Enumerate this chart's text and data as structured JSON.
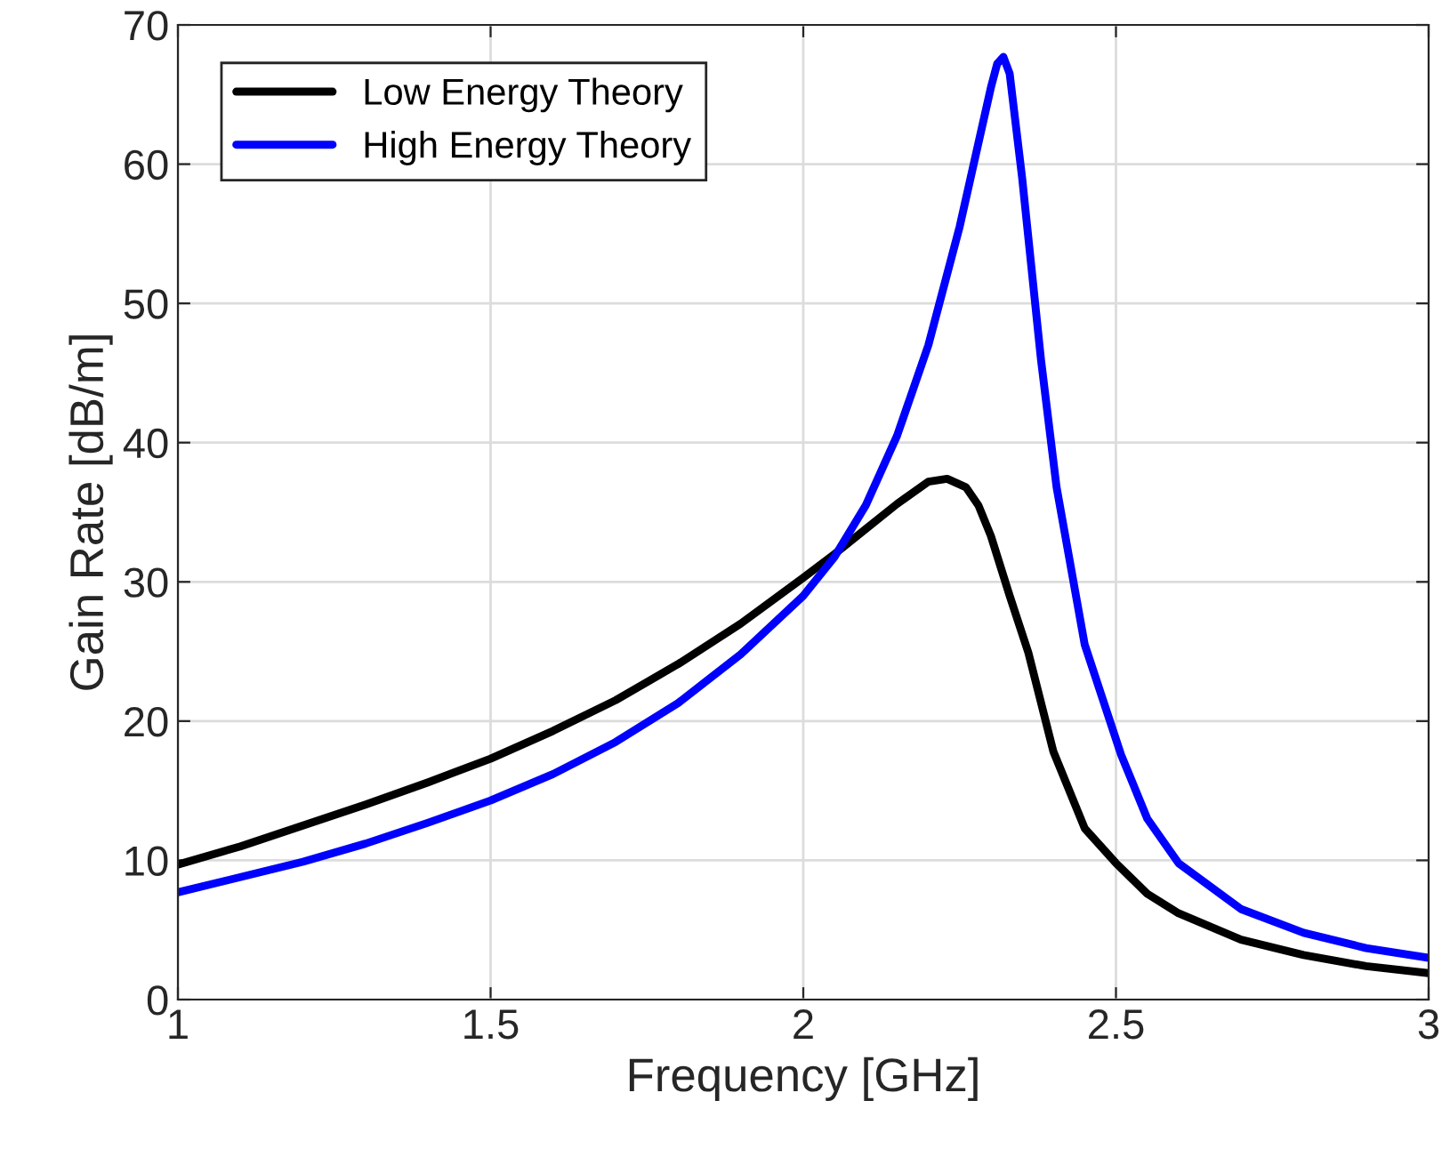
{
  "chart_data": {
    "type": "line",
    "xlabel": "Frequency [GHz]",
    "ylabel": "Gain Rate [dB/m]",
    "xlim": [
      1,
      3
    ],
    "xticks": [
      1,
      1.5,
      2,
      2.5,
      3
    ],
    "ylim": [
      0,
      70
    ],
    "yticks": [
      0,
      10,
      20,
      30,
      40,
      50,
      60,
      70
    ],
    "grid": true,
    "legend": "top left",
    "line_style": "solid",
    "marker": "none",
    "series": [
      {
        "name": "Low Energy Theory",
        "color": "#000000",
        "x": [
          1.0,
          1.1,
          1.2,
          1.3,
          1.4,
          1.5,
          1.6,
          1.7,
          1.8,
          1.9,
          2.0,
          2.05,
          2.1,
          2.15,
          2.2,
          2.23,
          2.26,
          2.28,
          2.3,
          2.33,
          2.36,
          2.4,
          2.45,
          2.5,
          2.55,
          2.6,
          2.7,
          2.8,
          2.9,
          3.0
        ],
        "values": [
          9.7,
          11.0,
          12.5,
          14.0,
          15.6,
          17.3,
          19.3,
          21.5,
          24.1,
          27.0,
          30.3,
          32.0,
          33.8,
          35.6,
          37.2,
          37.4,
          36.8,
          35.5,
          33.3,
          29.0,
          24.9,
          17.8,
          12.3,
          9.8,
          7.6,
          6.2,
          4.3,
          3.2,
          2.4,
          1.9
        ]
      },
      {
        "name": "High Energy Theory",
        "color": "#0000ff",
        "x": [
          1.0,
          1.1,
          1.2,
          1.3,
          1.4,
          1.5,
          1.6,
          1.7,
          1.8,
          1.9,
          2.0,
          2.05,
          2.1,
          2.15,
          2.2,
          2.25,
          2.28,
          2.3,
          2.31,
          2.32,
          2.33,
          2.35,
          2.38,
          2.405,
          2.45,
          2.508,
          2.55,
          2.6,
          2.7,
          2.8,
          2.9,
          3.0
        ],
        "values": [
          7.7,
          8.8,
          9.9,
          11.2,
          12.7,
          14.3,
          16.2,
          18.5,
          21.3,
          24.8,
          29.0,
          31.8,
          35.5,
          40.5,
          47.0,
          55.5,
          61.5,
          65.5,
          67.2,
          67.7,
          66.5,
          59.0,
          46.0,
          36.8,
          25.5,
          17.6,
          13.0,
          9.8,
          6.5,
          4.8,
          3.7,
          3.0
        ]
      }
    ]
  }
}
